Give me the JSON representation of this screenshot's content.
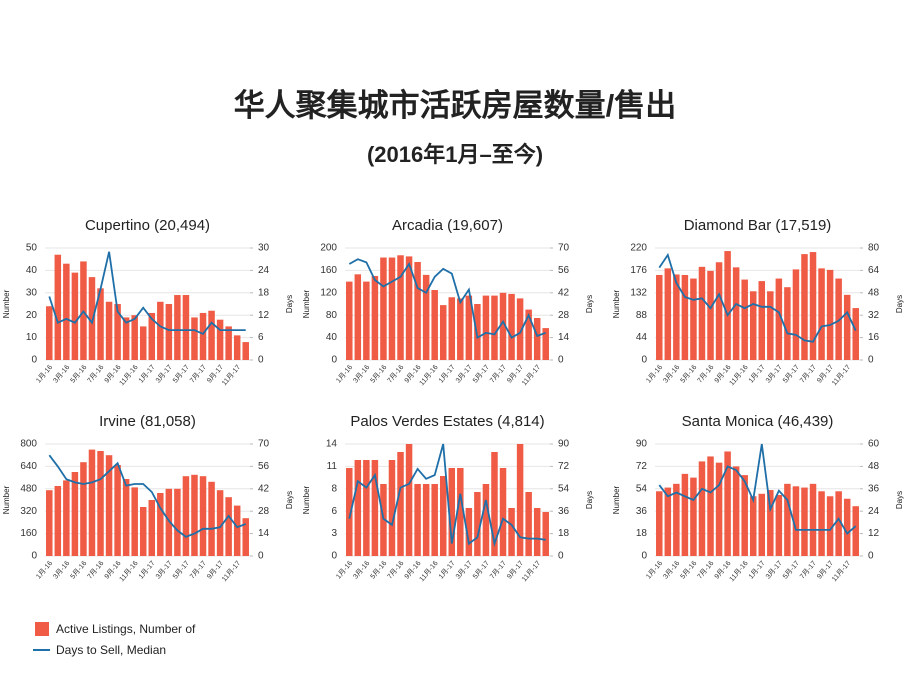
{
  "title": "华人聚集城市活跃房屋数量/售出",
  "subtitle": "(2016年1月–至今)",
  "chart_data": [
    {
      "type": "bar_line",
      "title": "Cupertino (20,494)",
      "ylabel": "Number",
      "y2label": "Days",
      "categories": [
        "1月-16",
        null,
        "3月-16",
        null,
        "5月-16",
        null,
        "7月-16",
        null,
        "9月-16",
        null,
        "11月-16",
        null,
        "1月-17",
        null,
        "3月-17",
        null,
        "5月-17",
        null,
        "7月-17",
        null,
        "9月-17",
        null,
        "11月-17",
        null
      ],
      "series": [
        {
          "name": "Active Listings, Number of",
          "color": "#ef5b45",
          "values": [
            24,
            47,
            43,
            39,
            44,
            37,
            32,
            26,
            25,
            19,
            20,
            15,
            21,
            26,
            25,
            29,
            29,
            19,
            21,
            22,
            18,
            15,
            11,
            8
          ]
        },
        {
          "name": "Days to Sell, Median",
          "color": "#1f6fa8",
          "axis": "y2",
          "values": [
            17,
            10,
            11,
            10,
            13,
            10,
            19,
            29,
            13,
            10,
            11,
            14,
            11,
            9,
            8,
            8,
            8,
            8,
            7,
            10,
            8,
            8,
            8,
            8
          ]
        }
      ],
      "ylim": [
        0,
        50
      ],
      "yticks": [
        0,
        10,
        20,
        30,
        40,
        50
      ],
      "y2lim": [
        0,
        30
      ],
      "y2ticks": [
        0,
        6,
        12,
        18,
        24,
        30
      ]
    },
    {
      "type": "bar_line",
      "title": "Arcadia (19,607)",
      "ylabel": "Number",
      "y2label": "Days",
      "categories": [
        "1月-16",
        null,
        "3月-16",
        null,
        "5月-16",
        null,
        "7月-16",
        null,
        "9月-16",
        null,
        "11月-16",
        null,
        "1月-17",
        null,
        "3月-17",
        null,
        "5月-17",
        null,
        "7月-17",
        null,
        "9月-17",
        null,
        "11月-17",
        null
      ],
      "series": [
        {
          "name": "Active Listings, Number of",
          "color": "#ef5b45",
          "values": [
            140,
            153,
            140,
            150,
            183,
            183,
            187,
            185,
            175,
            152,
            125,
            98,
            112,
            110,
            115,
            100,
            115,
            115,
            120,
            118,
            110,
            90,
            75,
            57
          ]
        },
        {
          "name": "Days to Sell, Median",
          "color": "#1f6fa8",
          "axis": "y2",
          "values": [
            60,
            63,
            61,
            50,
            46,
            49,
            52,
            60,
            45,
            42,
            52,
            57,
            54,
            36,
            44,
            14,
            17,
            16,
            24,
            14,
            17,
            28,
            15,
            17
          ]
        }
      ],
      "ylim": [
        0,
        200
      ],
      "yticks": [
        0,
        40,
        80,
        120,
        160,
        200
      ],
      "y2lim": [
        0,
        70
      ],
      "y2ticks": [
        0,
        14,
        28,
        42,
        56,
        70
      ]
    },
    {
      "type": "bar_line",
      "title": "Diamond Bar (17,519)",
      "ylabel": "Number",
      "y2label": "Days",
      "categories": [
        "1月-16",
        null,
        "3月-16",
        null,
        "5月-16",
        null,
        "7月-16",
        null,
        "9月-16",
        null,
        "11月-16",
        null,
        "1月-17",
        null,
        "3月-17",
        null,
        "5月-17",
        null,
        "7月-17",
        null,
        "9月-17",
        null,
        "11月-17",
        null
      ],
      "series": [
        {
          "name": "Active Listings, Number of",
          "color": "#ef5b45",
          "values": [
            167,
            180,
            168,
            167,
            160,
            183,
            175,
            192,
            214,
            182,
            158,
            135,
            155,
            135,
            160,
            143,
            178,
            208,
            212,
            180,
            177,
            160,
            128,
            102
          ]
        },
        {
          "name": "Days to Sell, Median",
          "color": "#1f6fa8",
          "axis": "y2",
          "values": [
            66,
            75,
            55,
            45,
            43,
            44,
            37,
            47,
            32,
            40,
            37,
            40,
            38,
            38,
            34,
            19,
            18,
            14,
            13,
            24,
            25,
            28,
            34,
            21
          ]
        }
      ],
      "ylim": [
        0,
        220
      ],
      "yticks": [
        0,
        44,
        88,
        132,
        176,
        220
      ],
      "y2lim": [
        0,
        80
      ],
      "y2ticks": [
        0,
        16,
        32,
        48,
        64,
        80
      ]
    },
    {
      "type": "bar_line",
      "title": "Irvine (81,058)",
      "ylabel": "Number",
      "y2label": "Days",
      "categories": [
        "1月-16",
        null,
        "3月-16",
        null,
        "5月-16",
        null,
        "7月-16",
        null,
        "9月-16",
        null,
        "11月-16",
        null,
        "1月-17",
        null,
        "3月-17",
        null,
        "5月-17",
        null,
        "7月-17",
        null,
        "9月-17",
        null,
        "11月-17",
        null
      ],
      "series": [
        {
          "name": "Active Listings, Number of",
          "color": "#ef5b45",
          "values": [
            470,
            500,
            540,
            600,
            670,
            760,
            750,
            720,
            650,
            550,
            490,
            350,
            400,
            450,
            480,
            480,
            570,
            580,
            570,
            530,
            470,
            420,
            360,
            270
          ]
        },
        {
          "name": "Days to Sell, Median",
          "color": "#1f6fa8",
          "axis": "y2",
          "values": [
            63,
            56,
            48,
            46,
            45,
            46,
            48,
            53,
            58,
            44,
            45,
            45,
            40,
            30,
            22,
            16,
            12,
            14,
            17,
            17,
            18,
            25,
            18,
            20
          ]
        }
      ],
      "ylim": [
        0,
        800
      ],
      "yticks": [
        0,
        160,
        320,
        480,
        640,
        800
      ],
      "y2lim": [
        0,
        70
      ],
      "y2ticks": [
        0,
        14,
        28,
        42,
        56,
        70
      ]
    },
    {
      "type": "bar_line",
      "title": "Palos Verdes Estates (4,814)",
      "ylabel": "Number",
      "y2label": "Days",
      "categories": [
        "1月-16",
        null,
        "3月-16",
        null,
        "5月-16",
        null,
        "7月-16",
        null,
        "9月-16",
        null,
        "11月-16",
        null,
        "1月-17",
        null,
        "3月-17",
        null,
        "5月-17",
        null,
        "7月-17",
        null,
        "9月-17",
        null,
        "11月-17",
        null
      ],
      "series": [
        {
          "name": "Active Listings, Number of",
          "color": "#ef5b45",
          "values": [
            11,
            12,
            12,
            12,
            9,
            12,
            13,
            14,
            9,
            9,
            9,
            10,
            11,
            11,
            6,
            8,
            9,
            13,
            11,
            6,
            14,
            8,
            6,
            5.5
          ]
        },
        {
          "name": "Days to Sell, Median",
          "color": "#1f6fa8",
          "axis": "y2",
          "values": [
            30,
            60,
            55,
            65,
            30,
            25,
            55,
            58,
            70,
            62,
            65,
            90,
            10,
            50,
            10,
            15,
            45,
            10,
            30,
            25,
            15,
            14,
            14,
            13
          ]
        }
      ],
      "ylim": [
        0,
        14
      ],
      "yticks": [
        0,
        {
          "value": 2.8,
          "label": "3"
        },
        {
          "value": 5.6,
          "label": "6"
        },
        {
          "value": 8.4,
          "label": "8"
        },
        {
          "value": 11.2,
          "label": "11"
        },
        14
      ],
      "y2lim": [
        0,
        90
      ],
      "y2ticks": [
        0,
        18,
        36,
        54,
        72,
        90
      ]
    },
    {
      "type": "bar_line",
      "title": "Santa Monica (46,439)",
      "ylabel": "Number",
      "y2label": "Days",
      "categories": [
        "1月-16",
        null,
        "3月-16",
        null,
        "5月-16",
        null,
        "7月-16",
        null,
        "9月-16",
        null,
        "11月-16",
        null,
        "1月-17",
        null,
        "3月-17",
        null,
        "5月-17",
        null,
        "7月-17",
        null,
        "9月-17",
        null,
        "11月-17",
        null
      ],
      "series": [
        {
          "name": "Active Listings, Number of",
          "color": "#ef5b45",
          "values": [
            52,
            55,
            58,
            66,
            63,
            76,
            80,
            75,
            84,
            72,
            65,
            48,
            50,
            53,
            49,
            58,
            56,
            55,
            58,
            52,
            48,
            52,
            46,
            40
          ]
        },
        {
          "name": "Days to Sell, Median",
          "color": "#1f6fa8",
          "axis": "y2",
          "values": [
            38,
            32,
            34,
            32,
            30,
            36,
            34,
            38,
            48,
            46,
            40,
            30,
            60,
            25,
            35,
            30,
            14,
            14,
            14,
            14,
            14,
            20,
            12,
            16
          ]
        }
      ],
      "ylim": [
        0,
        90
      ],
      "yticks": [
        0,
        18,
        36,
        54,
        72,
        90
      ],
      "y2lim": [
        0,
        60
      ],
      "y2ticks": [
        0,
        12,
        24,
        36,
        48,
        60
      ]
    }
  ]
}
